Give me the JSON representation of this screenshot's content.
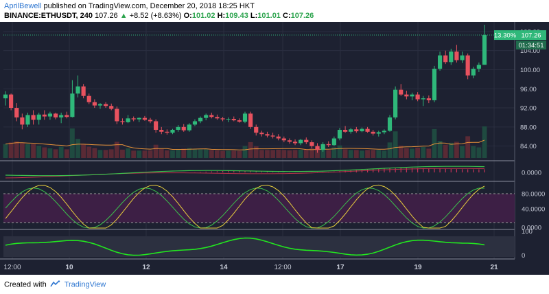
{
  "header": {
    "author": "AprilBewell",
    "published_text": "published on TradingView.com, December 20, 2018 18:25 HKT",
    "symbol": "BINANCE:ETHUSDT, 240",
    "last": "107.26",
    "change": "+8.52 (+8.63%)",
    "o_label": "O:",
    "o_value": "101.02",
    "h_label": "H:",
    "h_value": "109.43",
    "l_label": "L:",
    "l_value": "101.01",
    "c_label": "C:",
    "c_value": "107.26"
  },
  "footer": {
    "created_with": "Created with",
    "brand": "TradingView"
  },
  "colors": {
    "background": "#1d2131",
    "up": "#2fb87a",
    "down": "#e8525f",
    "ma_line": "#e69138",
    "rsi_fill": "#3d1f45",
    "stoch_k": "#3cc14c",
    "stoch_d": "#e9cf3d",
    "bottom_osc": "#22e61f",
    "price_tag": "#2fb87a"
  },
  "chart_data": {
    "type": "candlestick",
    "symbol": "BINANCE:ETHUSDT",
    "timeframe": "240",
    "price_axis": {
      "ticks": [
        "84.00",
        "88.00",
        "92.00",
        "96.00",
        "100.00",
        "104.00",
        "108.00"
      ],
      "range": [
        81.5,
        110
      ]
    },
    "x_tick_labels": [
      "12:00",
      "10",
      "12",
      "14",
      "12:00",
      "17",
      "19",
      "21"
    ],
    "last_price_label": "107.26",
    "percent_label": "13.30%",
    "countdown_label": "01:34:51",
    "candles": [
      {
        "o": 94.0,
        "h": 95.5,
        "l": 92.5,
        "c": 94.8
      },
      {
        "o": 94.8,
        "h": 95.0,
        "l": 91.5,
        "c": 92.0
      },
      {
        "o": 92.0,
        "h": 93.0,
        "l": 89.2,
        "c": 90.0
      },
      {
        "o": 90.0,
        "h": 90.8,
        "l": 87.5,
        "c": 88.5
      },
      {
        "o": 88.5,
        "h": 91.0,
        "l": 88.0,
        "c": 90.5
      },
      {
        "o": 90.5,
        "h": 91.5,
        "l": 88.5,
        "c": 89.5
      },
      {
        "o": 89.5,
        "h": 91.0,
        "l": 88.5,
        "c": 90.6
      },
      {
        "o": 90.6,
        "h": 91.5,
        "l": 89.5,
        "c": 90.2
      },
      {
        "o": 90.2,
        "h": 91.2,
        "l": 89.5,
        "c": 90.8
      },
      {
        "o": 90.8,
        "h": 91.0,
        "l": 89.6,
        "c": 90.0
      },
      {
        "o": 90.0,
        "h": 91.0,
        "l": 88.8,
        "c": 90.5
      },
      {
        "o": 90.5,
        "h": 91.2,
        "l": 89.8,
        "c": 90.1
      },
      {
        "o": 90.1,
        "h": 97.8,
        "l": 90.0,
        "c": 95.0
      },
      {
        "o": 95.0,
        "h": 98.8,
        "l": 94.2,
        "c": 96.5
      },
      {
        "o": 96.5,
        "h": 97.0,
        "l": 94.0,
        "c": 94.5
      },
      {
        "o": 94.5,
        "h": 95.0,
        "l": 92.8,
        "c": 93.2
      },
      {
        "o": 93.2,
        "h": 93.8,
        "l": 92.0,
        "c": 92.5
      },
      {
        "o": 92.5,
        "h": 93.0,
        "l": 91.8,
        "c": 92.8
      },
      {
        "o": 92.8,
        "h": 93.2,
        "l": 92.0,
        "c": 92.4
      },
      {
        "o": 92.4,
        "h": 92.9,
        "l": 91.5,
        "c": 91.8
      },
      {
        "o": 91.8,
        "h": 92.3,
        "l": 88.6,
        "c": 89.2
      },
      {
        "o": 89.2,
        "h": 89.8,
        "l": 88.5,
        "c": 89.0
      },
      {
        "o": 89.0,
        "h": 90.5,
        "l": 88.8,
        "c": 89.8
      },
      {
        "o": 89.8,
        "h": 90.2,
        "l": 89.2,
        "c": 89.6
      },
      {
        "o": 89.6,
        "h": 90.0,
        "l": 89.0,
        "c": 89.9
      },
      {
        "o": 89.9,
        "h": 90.3,
        "l": 89.3,
        "c": 89.5
      },
      {
        "o": 89.5,
        "h": 89.9,
        "l": 88.8,
        "c": 89.2
      },
      {
        "o": 89.2,
        "h": 89.6,
        "l": 86.8,
        "c": 87.4
      },
      {
        "o": 87.4,
        "h": 88.0,
        "l": 86.5,
        "c": 87.0
      },
      {
        "o": 87.0,
        "h": 87.5,
        "l": 86.4,
        "c": 86.8
      },
      {
        "o": 86.8,
        "h": 87.6,
        "l": 86.5,
        "c": 87.4
      },
      {
        "o": 87.4,
        "h": 88.4,
        "l": 87.0,
        "c": 88.0
      },
      {
        "o": 88.0,
        "h": 88.6,
        "l": 87.0,
        "c": 87.3
      },
      {
        "o": 87.3,
        "h": 88.8,
        "l": 87.0,
        "c": 88.5
      },
      {
        "o": 88.5,
        "h": 89.6,
        "l": 88.2,
        "c": 89.2
      },
      {
        "o": 89.2,
        "h": 90.2,
        "l": 88.8,
        "c": 89.9
      },
      {
        "o": 89.9,
        "h": 90.8,
        "l": 89.4,
        "c": 90.5
      },
      {
        "o": 90.5,
        "h": 91.0,
        "l": 89.8,
        "c": 90.1
      },
      {
        "o": 90.1,
        "h": 90.6,
        "l": 89.5,
        "c": 89.8
      },
      {
        "o": 89.8,
        "h": 90.1,
        "l": 89.2,
        "c": 89.6
      },
      {
        "o": 89.6,
        "h": 90.0,
        "l": 89.0,
        "c": 89.7
      },
      {
        "o": 89.7,
        "h": 90.2,
        "l": 89.2,
        "c": 89.4
      },
      {
        "o": 89.4,
        "h": 89.8,
        "l": 88.9,
        "c": 89.1
      },
      {
        "o": 89.1,
        "h": 91.2,
        "l": 88.8,
        "c": 90.8
      },
      {
        "o": 90.8,
        "h": 91.2,
        "l": 87.6,
        "c": 88.0
      },
      {
        "o": 88.0,
        "h": 88.5,
        "l": 86.2,
        "c": 86.8
      },
      {
        "o": 86.8,
        "h": 87.2,
        "l": 86.0,
        "c": 86.5
      },
      {
        "o": 86.5,
        "h": 87.0,
        "l": 85.8,
        "c": 86.2
      },
      {
        "o": 86.2,
        "h": 86.8,
        "l": 85.6,
        "c": 86.0
      },
      {
        "o": 86.0,
        "h": 86.5,
        "l": 85.2,
        "c": 85.6
      },
      {
        "o": 85.6,
        "h": 86.0,
        "l": 84.8,
        "c": 85.2
      },
      {
        "o": 85.2,
        "h": 85.6,
        "l": 84.5,
        "c": 84.9
      },
      {
        "o": 84.9,
        "h": 85.4,
        "l": 84.2,
        "c": 84.6
      },
      {
        "o": 84.6,
        "h": 85.5,
        "l": 84.2,
        "c": 85.3
      },
      {
        "o": 85.3,
        "h": 85.8,
        "l": 84.4,
        "c": 84.8
      },
      {
        "o": 84.8,
        "h": 85.2,
        "l": 83.5,
        "c": 84.0
      },
      {
        "o": 84.0,
        "h": 84.6,
        "l": 82.6,
        "c": 83.2
      },
      {
        "o": 83.2,
        "h": 84.8,
        "l": 82.8,
        "c": 84.4
      },
      {
        "o": 84.4,
        "h": 85.0,
        "l": 83.8,
        "c": 84.2
      },
      {
        "o": 84.2,
        "h": 86.0,
        "l": 84.0,
        "c": 85.6
      },
      {
        "o": 85.6,
        "h": 87.8,
        "l": 85.2,
        "c": 87.4
      },
      {
        "o": 87.4,
        "h": 88.2,
        "l": 86.8,
        "c": 87.0
      },
      {
        "o": 87.0,
        "h": 87.8,
        "l": 86.6,
        "c": 87.5
      },
      {
        "o": 87.5,
        "h": 88.0,
        "l": 86.8,
        "c": 87.1
      },
      {
        "o": 87.1,
        "h": 87.9,
        "l": 86.9,
        "c": 87.6
      },
      {
        "o": 87.6,
        "h": 88.0,
        "l": 86.8,
        "c": 87.0
      },
      {
        "o": 87.0,
        "h": 87.4,
        "l": 86.2,
        "c": 86.6
      },
      {
        "o": 86.6,
        "h": 87.2,
        "l": 86.0,
        "c": 86.9
      },
      {
        "o": 86.9,
        "h": 87.5,
        "l": 86.5,
        "c": 87.2
      },
      {
        "o": 87.2,
        "h": 90.5,
        "l": 87.0,
        "c": 90.0
      },
      {
        "o": 90.0,
        "h": 96.5,
        "l": 89.6,
        "c": 95.8
      },
      {
        "o": 95.8,
        "h": 97.0,
        "l": 94.5,
        "c": 94.8
      },
      {
        "o": 94.8,
        "h": 95.6,
        "l": 93.8,
        "c": 94.4
      },
      {
        "o": 94.4,
        "h": 95.2,
        "l": 93.6,
        "c": 94.8
      },
      {
        "o": 94.8,
        "h": 95.3,
        "l": 93.4,
        "c": 93.8
      },
      {
        "o": 93.8,
        "h": 94.5,
        "l": 92.4,
        "c": 94.0
      },
      {
        "o": 94.0,
        "h": 94.6,
        "l": 93.0,
        "c": 93.6
      },
      {
        "o": 93.6,
        "h": 100.8,
        "l": 93.2,
        "c": 100.2
      },
      {
        "o": 100.2,
        "h": 103.8,
        "l": 99.8,
        "c": 103.0
      },
      {
        "o": 103.0,
        "h": 104.0,
        "l": 101.2,
        "c": 101.6
      },
      {
        "o": 101.6,
        "h": 104.4,
        "l": 101.0,
        "c": 103.8
      },
      {
        "o": 103.8,
        "h": 105.2,
        "l": 101.5,
        "c": 102.0
      },
      {
        "o": 102.0,
        "h": 103.8,
        "l": 101.4,
        "c": 103.0
      },
      {
        "o": 103.0,
        "h": 103.4,
        "l": 98.0,
        "c": 98.8
      },
      {
        "o": 98.8,
        "h": 100.6,
        "l": 98.2,
        "c": 100.2
      },
      {
        "o": 100.2,
        "h": 101.5,
        "l": 99.5,
        "c": 101.0
      },
      {
        "o": 101.02,
        "h": 109.43,
        "l": 101.01,
        "c": 107.26
      }
    ]
  }
}
